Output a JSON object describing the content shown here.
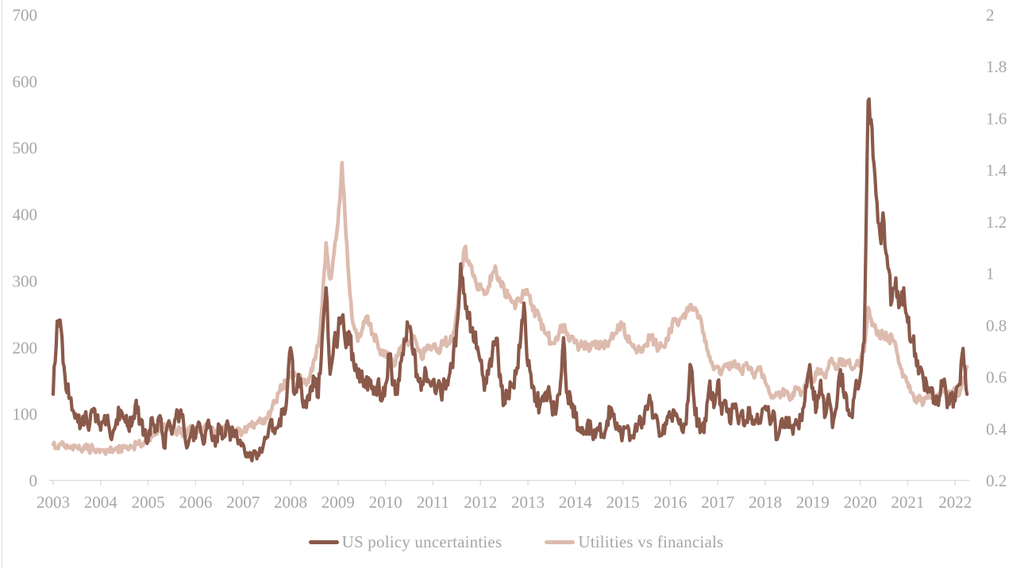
{
  "chart_data": {
    "type": "line",
    "title": "",
    "x_range": {
      "start": "2003-01",
      "end": "2022-04",
      "frequency": "monthly"
    },
    "x_tick_labels": [
      "2003",
      "2004",
      "2005",
      "2006",
      "2007",
      "2008",
      "2009",
      "2010",
      "2011",
      "2012",
      "2013",
      "2014",
      "2015",
      "2016",
      "2017",
      "2018",
      "2019",
      "2020",
      "2021",
      "2022"
    ],
    "left_axis": {
      "min": 0,
      "max": 700,
      "tick_labels": [
        "0",
        "100",
        "200",
        "300",
        "400",
        "500",
        "600",
        "700"
      ]
    },
    "right_axis": {
      "min": 0.2,
      "max": 2,
      "tick_labels": [
        "0.2",
        "0.4",
        "0.6",
        "0.8",
        "1",
        "1.2",
        "1.4",
        "1.6",
        "1.8",
        "2"
      ]
    },
    "grid": "off",
    "legend_position": "bottom",
    "series": [
      {
        "name": "US policy uncertainties",
        "axis": "left",
        "color": "#8a594a",
        "values": [
          130,
          240,
          228,
          155,
          124,
          106,
          95,
          83,
          98,
          76,
          104,
          90,
          76,
          98,
          85,
          70,
          92,
          106,
          95,
          80,
          88,
          121,
          85,
          75,
          60,
          95,
          75,
          98,
          50,
          86,
          70,
          95,
          100,
          85,
          52,
          75,
          64,
          86,
          55,
          88,
          70,
          52,
          83,
          65,
          90,
          68,
          75,
          60,
          55,
          42,
          35,
          45,
          38,
          50,
          65,
          92,
          71,
          85,
          100,
          120,
          200,
          130,
          160,
          120,
          110,
          140,
          155,
          125,
          215,
          290,
          160,
          210,
          220,
          245,
          200,
          220,
          175,
          155,
          165,
          140,
          150,
          130,
          145,
          120,
          145,
          187,
          150,
          130,
          180,
          210,
          232,
          190,
          160,
          136,
          170,
          150,
          151,
          140,
          131,
          145,
          155,
          170,
          230,
          326,
          280,
          250,
          230,
          199,
          180,
          136,
          160,
          190,
          214,
          160,
          115,
          130,
          145,
          160,
          200,
          267,
          173,
          140,
          125,
          112,
          120,
          135,
          115,
          100,
          130,
          215,
          130,
          110,
          95,
          80,
          70,
          85,
          75,
          65,
          80,
          70,
          90,
          110,
          85,
          75,
          70,
          80,
          65,
          75,
          85,
          90,
          110,
          120,
          95,
          80,
          70,
          85,
          95,
          105,
          90,
          75,
          85,
          175,
          120,
          85,
          75,
          90,
          150,
          110,
          149,
          100,
          120,
          88,
          115,
          95,
          104,
          90,
          110,
          85,
          100,
          95,
          112,
          95,
          105,
          62,
          90,
          80,
          95,
          70,
          85,
          95,
          120,
          165,
          140,
          110,
          151,
          95,
          130,
          80,
          110,
          167,
          125,
          107,
          95,
          151,
          155,
          210,
          571,
          530,
          430,
          370,
          390,
          320,
          270,
          305,
          265,
          290,
          238,
          210,
          191,
          165,
          151,
          133,
          140,
          115,
          125,
          151,
          110,
          130,
          120,
          145,
          199,
          130
        ]
      },
      {
        "name": "Utilities vs financials",
        "axis": "right",
        "color": "#ddbbae",
        "values": [
          0.34,
          0.33,
          0.34,
          0.33,
          0.33,
          0.32,
          0.33,
          0.32,
          0.33,
          0.32,
          0.33,
          0.32,
          0.32,
          0.31,
          0.32,
          0.31,
          0.32,
          0.32,
          0.33,
          0.32,
          0.33,
          0.34,
          0.34,
          0.35,
          0.36,
          0.37,
          0.39,
          0.41,
          0.42,
          0.4,
          0.41,
          0.39,
          0.4,
          0.38,
          0.39,
          0.4,
          0.4,
          0.39,
          0.4,
          0.41,
          0.4,
          0.38,
          0.4,
          0.39,
          0.41,
          0.4,
          0.39,
          0.39,
          0.39,
          0.4,
          0.41,
          0.42,
          0.43,
          0.42,
          0.44,
          0.47,
          0.5,
          0.54,
          0.57,
          0.58,
          0.6,
          0.62,
          0.6,
          0.58,
          0.57,
          0.61,
          0.67,
          0.72,
          0.88,
          1.12,
          0.98,
          1.08,
          1.2,
          1.43,
          1.15,
          0.92,
          0.8,
          0.74,
          0.78,
          0.83,
          0.8,
          0.76,
          0.73,
          0.7,
          0.7,
          0.66,
          0.65,
          0.68,
          0.72,
          0.75,
          0.73,
          0.76,
          0.72,
          0.68,
          0.7,
          0.71,
          0.72,
          0.7,
          0.72,
          0.74,
          0.73,
          0.76,
          0.85,
          1.0,
          1.1,
          1.05,
          1.0,
          0.96,
          0.96,
          0.92,
          0.95,
          1.0,
          1.01,
          0.97,
          0.94,
          0.91,
          0.89,
          0.88,
          0.9,
          0.92,
          0.92,
          0.88,
          0.85,
          0.82,
          0.79,
          0.76,
          0.73,
          0.75,
          0.78,
          0.8,
          0.77,
          0.75,
          0.74,
          0.72,
          0.73,
          0.71,
          0.72,
          0.74,
          0.71,
          0.73,
          0.72,
          0.75,
          0.77,
          0.79,
          0.8,
          0.76,
          0.73,
          0.71,
          0.72,
          0.7,
          0.73,
          0.76,
          0.74,
          0.71,
          0.72,
          0.75,
          0.78,
          0.82,
          0.8,
          0.83,
          0.85,
          0.88,
          0.86,
          0.83,
          0.8,
          0.74,
          0.68,
          0.63,
          0.64,
          0.62,
          0.65,
          0.63,
          0.66,
          0.64,
          0.62,
          0.65,
          0.63,
          0.61,
          0.63,
          0.62,
          0.58,
          0.54,
          0.52,
          0.54,
          0.53,
          0.55,
          0.52,
          0.54,
          0.56,
          0.53,
          0.57,
          0.6,
          0.59,
          0.61,
          0.63,
          0.6,
          0.64,
          0.66,
          0.63,
          0.67,
          0.65,
          0.66,
          0.63,
          0.65,
          0.66,
          0.7,
          0.87,
          0.8,
          0.78,
          0.75,
          0.77,
          0.74,
          0.76,
          0.72,
          0.65,
          0.61,
          0.58,
          0.54,
          0.51,
          0.53,
          0.5,
          0.52,
          0.54,
          0.51,
          0.53,
          0.55,
          0.52,
          0.54,
          0.56,
          0.53,
          0.58,
          0.64
        ]
      }
    ]
  },
  "legend": {
    "items": [
      {
        "label": "US policy uncertainties",
        "color": "#8a594a"
      },
      {
        "label": "Utilities vs financials",
        "color": "#ddbbae"
      }
    ]
  },
  "colors": {
    "axis_line": "#d9d9d9",
    "tick_text": "#a6a6a6",
    "background": "#ffffff",
    "series_dark": "#8a594a",
    "series_light": "#ddbbae"
  }
}
